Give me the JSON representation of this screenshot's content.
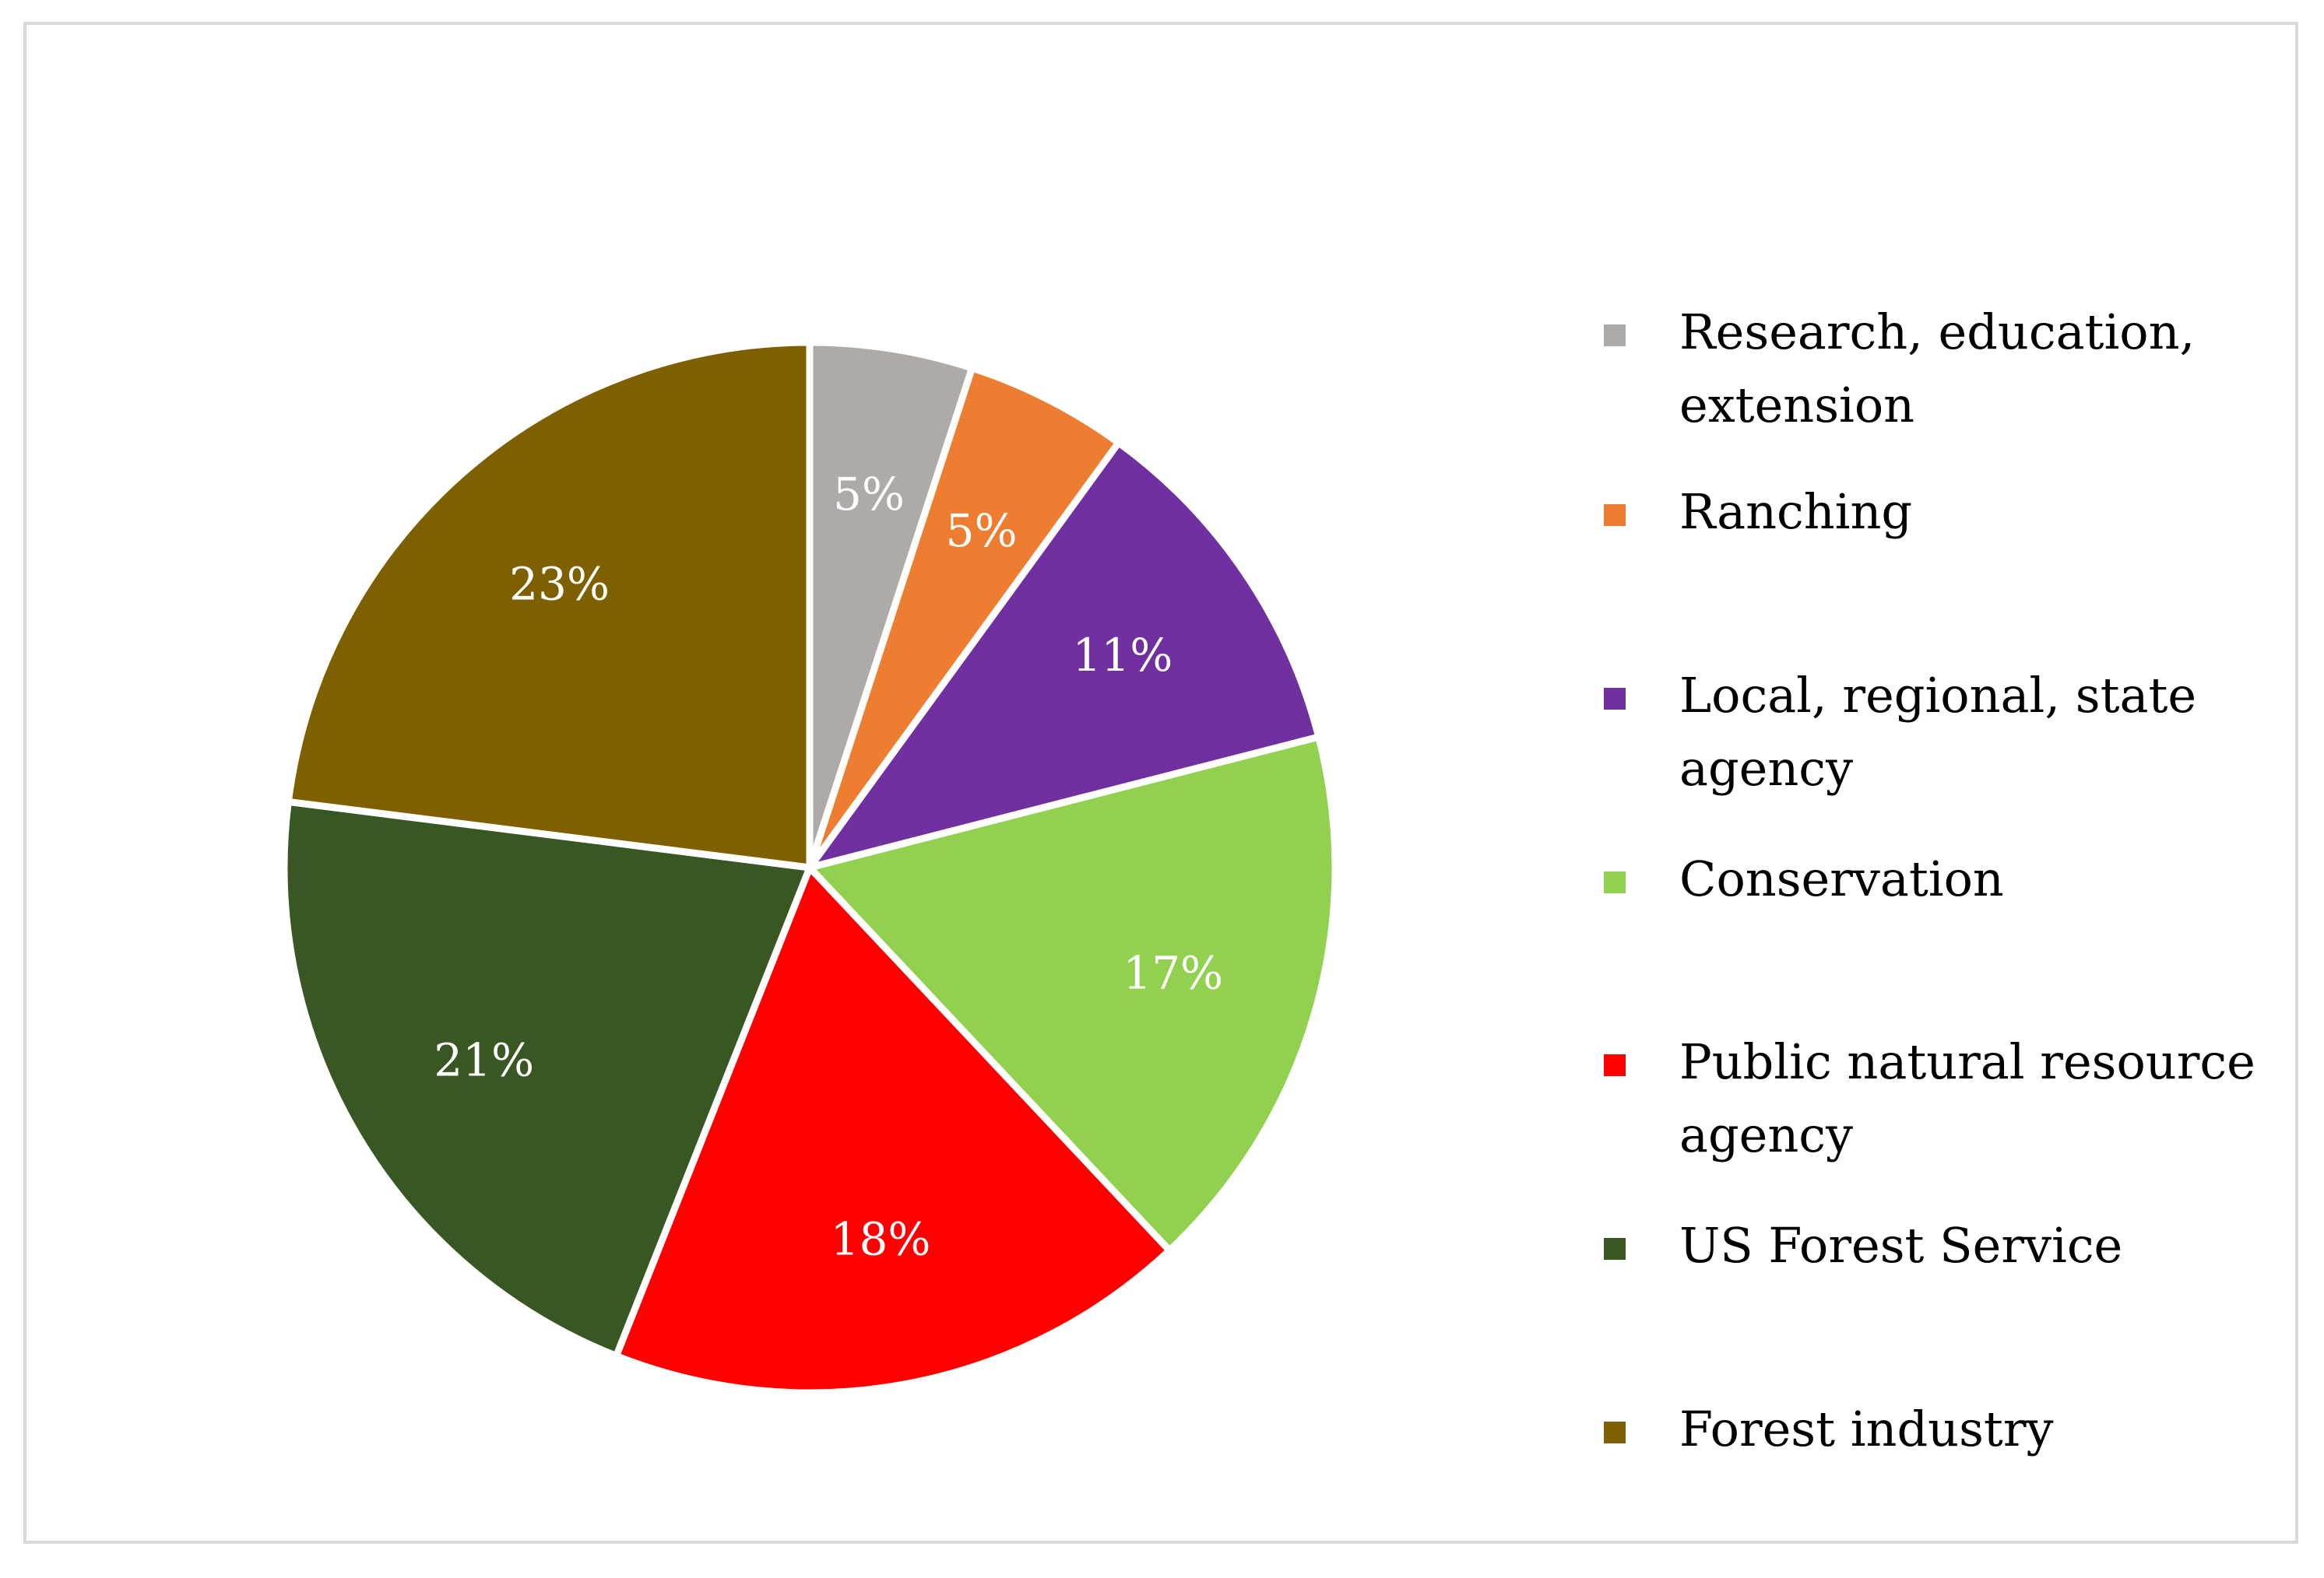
{
  "chart_data": {
    "type": "pie",
    "title": "",
    "start_angle_deg": 0,
    "direction": "clockwise",
    "slices": [
      {
        "name": "Research, education, extension",
        "value": 5,
        "label": "5%",
        "color": "#ADAAA8"
      },
      {
        "name": "Ranching",
        "value": 5,
        "label": "5%",
        "color": "#ED7D31"
      },
      {
        "name": "Local, regional, state agency",
        "value": 11,
        "label": "11%",
        "color": "#7030A0"
      },
      {
        "name": "Conservation",
        "value": 17,
        "label": "17%",
        "color": "#92D050"
      },
      {
        "name": "Public natural resource agency",
        "value": 18,
        "label": "18%",
        "color": "#FF0000"
      },
      {
        "name": "US Forest Service",
        "value": 21,
        "label": "21%",
        "color": "#385723"
      },
      {
        "name": "Forest industry",
        "value": 23,
        "label": "23%",
        "color": "#7F6000"
      }
    ],
    "legend": {
      "placement": "right",
      "entries": [
        {
          "label": "Research, education, extension",
          "color": "#ADAAA8"
        },
        {
          "label": "Ranching",
          "color": "#ED7D31"
        },
        {
          "label": "Local, regional, state agency",
          "color": "#7030A0"
        },
        {
          "label": "Conservation",
          "color": "#92D050"
        },
        {
          "label": "Public natural resource agency",
          "color": "#FF0000"
        },
        {
          "label": "US Forest Service",
          "color": "#385723"
        },
        {
          "label": "Forest industry",
          "color": "#7F6000"
        }
      ]
    }
  }
}
